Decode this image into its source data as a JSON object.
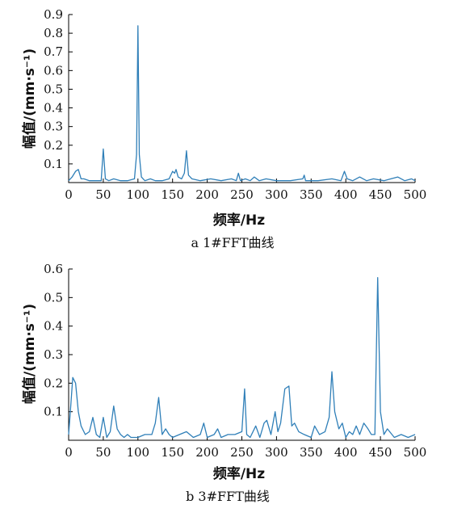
{
  "chart_data": [
    {
      "type": "line",
      "caption": "a  1#FFT曲线",
      "xlabel": "频率/Hz",
      "ylabel": "幅值/(mm·s⁻¹)",
      "xlim": [
        0,
        500
      ],
      "ylim": [
        0,
        0.9
      ],
      "xticks": [
        0,
        50,
        100,
        150,
        200,
        250,
        300,
        350,
        400,
        450,
        500
      ],
      "yticks": [
        0.1,
        0.2,
        0.3,
        0.4,
        0.5,
        0.6,
        0.7,
        0.8,
        0.9
      ],
      "color": "#2f7fb8",
      "x": [
        0,
        5,
        10,
        14,
        18,
        22,
        30,
        40,
        47,
        50,
        53,
        58,
        65,
        75,
        85,
        95,
        98,
        100,
        102,
        105,
        110,
        118,
        125,
        135,
        145,
        150,
        153,
        155,
        158,
        163,
        167,
        170,
        173,
        178,
        190,
        205,
        220,
        235,
        242,
        245,
        248,
        255,
        262,
        268,
        275,
        285,
        300,
        320,
        338,
        340,
        342,
        360,
        380,
        393,
        398,
        402,
        410,
        420,
        430,
        440,
        455,
        465,
        475,
        485,
        495,
        500
      ],
      "values": [
        0.01,
        0.03,
        0.06,
        0.07,
        0.02,
        0.02,
        0.01,
        0.01,
        0.01,
        0.18,
        0.02,
        0.01,
        0.02,
        0.01,
        0.01,
        0.02,
        0.15,
        0.84,
        0.15,
        0.03,
        0.01,
        0.02,
        0.01,
        0.01,
        0.02,
        0.06,
        0.05,
        0.07,
        0.03,
        0.02,
        0.05,
        0.17,
        0.04,
        0.02,
        0.01,
        0.02,
        0.01,
        0.02,
        0.01,
        0.05,
        0.01,
        0.02,
        0.01,
        0.03,
        0.01,
        0.02,
        0.01,
        0.01,
        0.02,
        0.04,
        0.01,
        0.01,
        0.02,
        0.01,
        0.06,
        0.02,
        0.01,
        0.03,
        0.01,
        0.02,
        0.01,
        0.02,
        0.03,
        0.01,
        0.02,
        0.01
      ]
    },
    {
      "type": "line",
      "caption": "b  3#FFT曲线",
      "xlabel": "频率/Hz",
      "ylabel": "幅值/(mm·s⁻¹)",
      "xlim": [
        0,
        500
      ],
      "ylim": [
        0,
        0.6
      ],
      "xticks": [
        0,
        50,
        100,
        150,
        200,
        250,
        300,
        350,
        400,
        450,
        500
      ],
      "yticks": [
        0.1,
        0.2,
        0.3,
        0.4,
        0.5,
        0.6
      ],
      "color": "#2f7fb8",
      "x": [
        0,
        3,
        6,
        10,
        14,
        18,
        24,
        30,
        35,
        40,
        45,
        50,
        55,
        60,
        65,
        70,
        75,
        80,
        85,
        90,
        100,
        110,
        120,
        125,
        130,
        135,
        140,
        145,
        150,
        160,
        170,
        180,
        190,
        195,
        200,
        210,
        215,
        220,
        230,
        240,
        250,
        254,
        257,
        262,
        270,
        276,
        282,
        286,
        292,
        298,
        302,
        306,
        312,
        318,
        322,
        326,
        332,
        340,
        350,
        355,
        362,
        370,
        376,
        380,
        384,
        390,
        395,
        400,
        405,
        410,
        415,
        420,
        426,
        432,
        437,
        442,
        446,
        450,
        455,
        460,
        470,
        480,
        490,
        500
      ],
      "values": [
        0.02,
        0.12,
        0.22,
        0.2,
        0.1,
        0.05,
        0.02,
        0.03,
        0.08,
        0.02,
        0.01,
        0.08,
        0.01,
        0.03,
        0.12,
        0.04,
        0.02,
        0.01,
        0.02,
        0.01,
        0.01,
        0.02,
        0.02,
        0.06,
        0.15,
        0.02,
        0.04,
        0.02,
        0.01,
        0.02,
        0.03,
        0.01,
        0.02,
        0.06,
        0.01,
        0.02,
        0.04,
        0.01,
        0.02,
        0.02,
        0.03,
        0.18,
        0.02,
        0.01,
        0.05,
        0.01,
        0.06,
        0.07,
        0.02,
        0.1,
        0.03,
        0.06,
        0.18,
        0.19,
        0.05,
        0.06,
        0.03,
        0.02,
        0.01,
        0.05,
        0.02,
        0.03,
        0.08,
        0.24,
        0.1,
        0.04,
        0.06,
        0.01,
        0.03,
        0.02,
        0.05,
        0.02,
        0.06,
        0.04,
        0.02,
        0.02,
        0.57,
        0.1,
        0.02,
        0.04,
        0.01,
        0.02,
        0.01,
        0.02
      ]
    }
  ]
}
